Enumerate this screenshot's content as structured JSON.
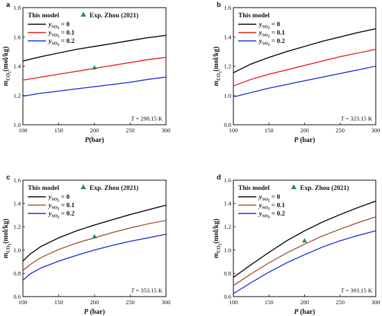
{
  "panel_labels": [
    "a",
    "b",
    "c",
    "d"
  ],
  "legend": {
    "model_label": "This model",
    "exp_label": "Exp. Zhou (2021)",
    "series_prefix": "y",
    "series_sub": "SO",
    "series_sub2": "2",
    "series_values": [
      "= 0",
      "= 0.1",
      "= 0.2"
    ]
  },
  "axis_text": {
    "ylabel_main": "m",
    "ylabel_sub": "CO",
    "ylabel_sub2": "2",
    "ylabel_unit": "(mol/kg)",
    "xlabel_a": "P(bar)",
    "xlabel_other": "P (bar)"
  },
  "colors": {
    "y0": "#000000",
    "y01": "#e81c1c",
    "y01_brown": "#a0522d",
    "y02": "#1f2fd6",
    "exp_marker": "#2e8b57"
  },
  "chart_data": [
    {
      "type": "line",
      "panel": "a",
      "x": [
        100,
        125,
        150,
        175,
        200,
        225,
        250,
        275,
        300
      ],
      "series": [
        {
          "name": "y_SO2 = 0",
          "values": [
            1.435,
            1.465,
            1.49,
            1.515,
            1.535,
            1.555,
            1.575,
            1.595,
            1.61
          ]
        },
        {
          "name": "y_SO2 = 0.1",
          "values": [
            1.305,
            1.325,
            1.345,
            1.365,
            1.385,
            1.405,
            1.425,
            1.445,
            1.46
          ]
        },
        {
          "name": "y_SO2 = 0.2",
          "values": [
            1.195,
            1.215,
            1.23,
            1.245,
            1.26,
            1.275,
            1.29,
            1.31,
            1.325
          ]
        }
      ],
      "experimental": [
        {
          "x": 200,
          "y": 1.39
        }
      ],
      "temperature": "T = 298.15 K",
      "xlim": [
        100,
        300
      ],
      "ylim": [
        1.0,
        1.8
      ],
      "xticks": [
        100,
        150,
        200,
        250,
        300
      ],
      "yticks": [
        "1.0",
        "1.2",
        "1.4",
        "1.6",
        "1.8"
      ],
      "show_exp_legend": true
    },
    {
      "type": "line",
      "panel": "b",
      "x": [
        100,
        125,
        150,
        175,
        200,
        225,
        250,
        275,
        300
      ],
      "series": [
        {
          "name": "y_SO2 = 0",
          "values": [
            1.155,
            1.215,
            1.26,
            1.3,
            1.335,
            1.37,
            1.4,
            1.43,
            1.455
          ]
        },
        {
          "name": "y_SO2 = 0.1",
          "values": [
            1.065,
            1.11,
            1.145,
            1.175,
            1.205,
            1.235,
            1.265,
            1.29,
            1.315
          ]
        },
        {
          "name": "y_SO2 = 0.2",
          "values": [
            0.99,
            1.02,
            1.05,
            1.075,
            1.1,
            1.125,
            1.15,
            1.175,
            1.2
          ]
        }
      ],
      "experimental": [],
      "temperature": "T = 323.15 K",
      "xlim": [
        100,
        300
      ],
      "ylim": [
        0.8,
        1.6
      ],
      "xticks": [
        100,
        150,
        200,
        250,
        300
      ],
      "yticks": [
        "0.8",
        "1.0",
        "1.2",
        "1.4",
        "1.6"
      ],
      "show_exp_legend": false
    },
    {
      "type": "line",
      "panel": "c",
      "x": [
        100,
        110,
        125,
        150,
        175,
        200,
        225,
        250,
        275,
        300
      ],
      "series": [
        {
          "name": "y_SO2 = 0",
          "values": [
            0.905,
            0.965,
            1.03,
            1.105,
            1.165,
            1.215,
            1.26,
            1.305,
            1.345,
            1.385
          ]
        },
        {
          "name": "y_SO2 = 0.1",
          "values": [
            0.825,
            0.875,
            0.935,
            1.005,
            1.06,
            1.105,
            1.15,
            1.19,
            1.225,
            1.255
          ]
        },
        {
          "name": "y_SO2 = 0.2",
          "values": [
            0.74,
            0.795,
            0.845,
            0.905,
            0.955,
            1.0,
            1.04,
            1.075,
            1.105,
            1.135
          ]
        }
      ],
      "experimental": [
        {
          "x": 200,
          "y": 1.115
        }
      ],
      "temperature": "T = 353.15 K",
      "xlim": [
        100,
        300
      ],
      "ylim": [
        0.6,
        1.6
      ],
      "xticks": [
        100,
        150,
        200,
        250,
        300
      ],
      "yticks": [
        "0.6",
        "0.8",
        "1.0",
        "1.2",
        "1.4",
        "1.6"
      ],
      "show_exp_legend": true
    },
    {
      "type": "line",
      "panel": "d",
      "x": [
        100,
        125,
        150,
        175,
        200,
        225,
        250,
        275,
        300
      ],
      "series": [
        {
          "name": "y_SO2 = 0",
          "values": [
            0.765,
            0.875,
            0.98,
            1.08,
            1.165,
            1.24,
            1.305,
            1.365,
            1.42
          ]
        },
        {
          "name": "y_SO2 = 0.1",
          "values": [
            0.695,
            0.795,
            0.89,
            0.975,
            1.05,
            1.12,
            1.18,
            1.235,
            1.285
          ]
        },
        {
          "name": "y_SO2 = 0.2",
          "values": [
            0.625,
            0.72,
            0.81,
            0.89,
            0.96,
            1.025,
            1.08,
            1.125,
            1.165
          ]
        }
      ],
      "experimental": [
        {
          "x": 200,
          "y": 1.08
        }
      ],
      "temperature": "T = 393.15 K",
      "xlim": [
        100,
        300
      ],
      "ylim": [
        0.6,
        1.6
      ],
      "xticks": [
        100,
        150,
        200,
        250,
        300
      ],
      "yticks": [
        "0.6",
        "0.8",
        "1.0",
        "1.2",
        "1.4",
        "1.6"
      ],
      "show_exp_legend": true
    }
  ]
}
